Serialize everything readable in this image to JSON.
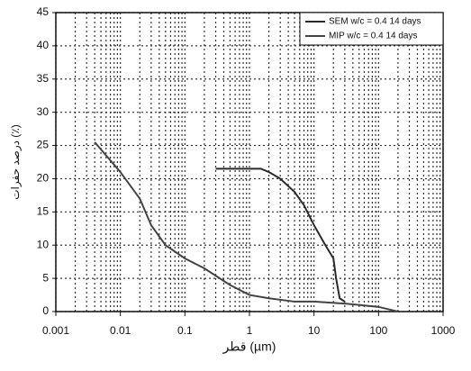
{
  "chart_data": {
    "type": "line",
    "x_label": "قطر (µm)",
    "y_label": "درصد حفرات (٪)",
    "log_x": true,
    "grid": true,
    "legend_position": "upper right",
    "xlim": [
      0.001,
      1000
    ],
    "xticks": [
      0.001,
      0.01,
      0.1,
      1,
      10,
      100,
      1000
    ],
    "ylim": [
      0,
      45
    ],
    "yticks": [
      0,
      5,
      10,
      15,
      20,
      25,
      30,
      35,
      40,
      45
    ],
    "series": [
      {
        "name": "SEM w/c = 0.4 14 days",
        "color": "#2a2a2a",
        "x": [
          0.3,
          0.5,
          1,
          1.5,
          2,
          3,
          5,
          7,
          10,
          15,
          20,
          22,
          25,
          30
        ],
        "values": [
          21.5,
          21.5,
          21.5,
          21.5,
          21,
          20,
          18,
          16,
          13,
          10,
          8,
          5,
          2,
          1.5
        ]
      },
      {
        "name": "MIP w/c = 0.4 14 days",
        "color": "#444444",
        "x": [
          0.004,
          0.01,
          0.02,
          0.03,
          0.05,
          0.1,
          0.2,
          0.5,
          1,
          2,
          5,
          10,
          30,
          50,
          100,
          150,
          200
        ],
        "values": [
          25.5,
          21,
          17,
          13,
          10,
          8,
          6.5,
          4,
          2.5,
          2,
          1.5,
          1.5,
          1.2,
          1,
          0.7,
          0.3,
          0
        ]
      }
    ]
  }
}
